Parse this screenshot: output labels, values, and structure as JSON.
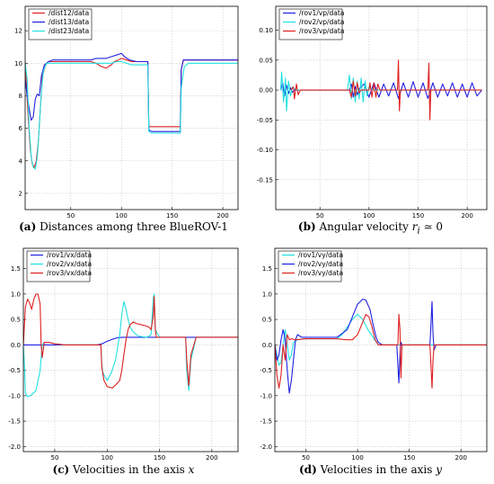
{
  "chart_data": [
    {
      "type": "line",
      "panel": "a",
      "caption": {
        "label": "(a)",
        "text": "Distances among three BlueROV-1"
      },
      "xlim": [
        5,
        215
      ],
      "ylim": [
        1,
        13.5
      ],
      "xticks": [
        50,
        100,
        150,
        200
      ],
      "yticks": [
        2,
        4,
        6,
        8,
        10,
        12
      ],
      "grid": true,
      "legend": "top-left",
      "series": [
        {
          "name": "/dist12/data",
          "color": "#e02020",
          "x": [
            5,
            8,
            10,
            12,
            14,
            16,
            18,
            20,
            22,
            25,
            28,
            32,
            40,
            60,
            70,
            75,
            80,
            85,
            90,
            93,
            97,
            100,
            105,
            110,
            120,
            126,
            127,
            130,
            140,
            150,
            158,
            159,
            161,
            165,
            180,
            200,
            215
          ],
          "y": [
            10.1,
            6.7,
            4.8,
            3.8,
            3.6,
            4.0,
            5.2,
            7.2,
            9.2,
            9.9,
            10.1,
            10.1,
            10.1,
            10.1,
            10.1,
            10.0,
            9.8,
            9.7,
            9.9,
            10.1,
            10.2,
            10.3,
            10.2,
            10.1,
            10.1,
            10.1,
            6.1,
            6.1,
            6.1,
            6.1,
            6.1,
            9.6,
            10.2,
            10.2,
            10.2,
            10.2,
            10.2
          ]
        },
        {
          "name": "/dist13/data",
          "color": "#2020e0",
          "x": [
            5,
            7,
            9,
            11,
            13,
            15,
            17,
            19,
            21,
            24,
            28,
            32,
            40,
            60,
            70,
            75,
            80,
            85,
            90,
            95,
            100,
            103,
            108,
            115,
            120,
            126,
            127,
            130,
            150,
            158,
            159,
            161,
            165,
            180,
            200,
            215
          ],
          "y": [
            9.0,
            8.0,
            7.2,
            6.5,
            6.7,
            7.8,
            8.1,
            8.0,
            9.2,
            9.9,
            10.1,
            10.2,
            10.2,
            10.2,
            10.2,
            10.3,
            10.3,
            10.3,
            10.4,
            10.5,
            10.6,
            10.4,
            10.2,
            10.1,
            10.1,
            10.1,
            5.9,
            5.8,
            5.8,
            5.8,
            9.6,
            10.2,
            10.2,
            10.2,
            10.2,
            10.2
          ]
        },
        {
          "name": "/dist23/data",
          "color": "#20e0e0",
          "x": [
            5,
            7,
            9,
            11,
            13,
            15,
            17,
            19,
            21,
            23,
            26,
            30,
            40,
            60,
            70,
            75,
            80,
            85,
            90,
            95,
            100,
            105,
            110,
            115,
            120,
            126,
            127,
            130,
            150,
            158,
            159,
            162,
            166,
            180,
            200,
            215
          ],
          "y": [
            10.0,
            9.0,
            6.0,
            4.2,
            3.6,
            3.5,
            4.2,
            6.2,
            8.2,
            9.5,
            10.0,
            10.0,
            10.0,
            10.0,
            10.0,
            10.0,
            10.0,
            10.0,
            10.0,
            10.1,
            10.1,
            10.0,
            9.9,
            9.9,
            9.9,
            9.9,
            5.8,
            5.7,
            5.7,
            5.7,
            8.5,
            9.8,
            10.0,
            10.0,
            10.0,
            10.0
          ]
        }
      ]
    },
    {
      "type": "line",
      "panel": "b",
      "caption": {
        "label": "(b)",
        "text": "Angular velocity",
        "math": "r",
        "math_sub": "i",
        "math_rest": " ≃ 0"
      },
      "xlim": [
        5,
        220
      ],
      "ylim": [
        -0.2,
        0.14
      ],
      "xticks": [
        50,
        100,
        150,
        200
      ],
      "yticks": [
        -0.15,
        -0.1,
        -0.05,
        0.0,
        0.05,
        0.1
      ],
      "grid": true,
      "legend": "top-left",
      "series": [
        {
          "name": "/rov1/vp/data",
          "color": "#2020e0",
          "x": [
            10,
            12,
            14,
            16,
            18,
            20,
            22,
            24,
            80,
            82,
            84,
            86,
            88,
            90,
            95,
            100,
            105,
            110,
            115,
            120,
            125,
            130,
            135,
            140,
            145,
            150,
            155,
            160,
            165,
            170,
            175,
            180,
            185,
            190,
            195,
            200,
            205,
            210,
            215
          ],
          "y": [
            0.0,
            0.012,
            -0.01,
            0.008,
            -0.006,
            0.004,
            -0.004,
            0.0,
            0.0,
            0.01,
            -0.012,
            0.006,
            -0.008,
            0.002,
            0.01,
            -0.012,
            0.012,
            -0.012,
            0.01,
            -0.01,
            0.012,
            -0.014,
            0.012,
            -0.012,
            0.014,
            -0.012,
            0.012,
            -0.014,
            0.012,
            -0.012,
            0.01,
            -0.01,
            0.012,
            -0.012,
            0.01,
            -0.012,
            0.012,
            -0.01,
            0.0
          ]
        },
        {
          "name": "/rov2/vp/data",
          "color": "#20e0e0",
          "x": [
            10,
            11,
            13,
            15,
            16,
            18,
            20,
            22,
            26,
            30,
            78,
            80,
            82,
            84,
            86,
            88,
            90,
            92,
            94,
            96,
            98,
            100,
            104,
            110,
            150,
            200,
            215
          ],
          "y": [
            0.0,
            0.03,
            -0.02,
            0.02,
            -0.035,
            0.015,
            -0.01,
            0.005,
            0.0,
            0.0,
            0.0,
            0.025,
            -0.015,
            0.02,
            -0.02,
            0.015,
            -0.015,
            0.02,
            -0.02,
            0.015,
            -0.01,
            0.005,
            0.0,
            0.0,
            0.0,
            0.0,
            0.0
          ]
        },
        {
          "name": "/rov3/vp/data",
          "color": "#e02020",
          "x": [
            20,
            23,
            24,
            26,
            28,
            30,
            35,
            80,
            82,
            84,
            86,
            88,
            90,
            92,
            100,
            101,
            103,
            105,
            107,
            109,
            111,
            120,
            129,
            130,
            131,
            132,
            140,
            160,
            161,
            162,
            163,
            165,
            180,
            200,
            215
          ],
          "y": [
            0.0,
            0.005,
            -0.015,
            0.01,
            -0.008,
            0.0,
            0.0,
            0.0,
            -0.012,
            0.015,
            -0.01,
            0.012,
            -0.005,
            0.0,
            0.0,
            0.012,
            -0.012,
            0.012,
            -0.012,
            0.01,
            0.0,
            0.0,
            0.0,
            0.05,
            -0.035,
            0.0,
            0.0,
            0.0,
            0.045,
            -0.05,
            0.0,
            0.0,
            0.0,
            0.0,
            0.0
          ]
        }
      ]
    },
    {
      "type": "line",
      "panel": "c",
      "caption": {
        "label": "(c)",
        "text": "Velocities in the axis",
        "math": "x",
        "math_sub": "",
        "math_rest": ""
      },
      "xlim": [
        20,
        225
      ],
      "ylim": [
        -2.1,
        1.9
      ],
      "xticks": [
        50,
        100,
        150,
        200
      ],
      "yticks": [
        -2.0,
        -1.5,
        -1.0,
        -0.5,
        0.0,
        0.5,
        1.0,
        1.5
      ],
      "grid": true,
      "legend": "top-left",
      "series": [
        {
          "name": "/rov1/vx/data",
          "color": "#2020e0",
          "x": [
            20,
            40,
            60,
            80,
            90,
            95,
            100,
            105,
            110,
            115,
            120,
            140,
            150,
            170,
            200,
            225
          ],
          "y": [
            0.0,
            0.0,
            0.0,
            0.0,
            0.0,
            0.02,
            0.07,
            0.11,
            0.14,
            0.15,
            0.15,
            0.15,
            0.15,
            0.15,
            0.15,
            0.15
          ]
        },
        {
          "name": "/rov2/vx/data",
          "color": "#20e0e0",
          "x": [
            20,
            21,
            22,
            24,
            28,
            32,
            36,
            38,
            40,
            44,
            50,
            60,
            80,
            94,
            95,
            96,
            100,
            104,
            108,
            112,
            114,
            116,
            118,
            120,
            122,
            125,
            130,
            138,
            142,
            144,
            145,
            146,
            150,
            170,
            175,
            176,
            178,
            180,
            185,
            200,
            225
          ],
          "y": [
            0.0,
            -0.4,
            -0.95,
            -1.02,
            -0.98,
            -0.9,
            -0.5,
            0.0,
            0.05,
            0.05,
            0.02,
            0.0,
            0.0,
            0.0,
            -0.4,
            -0.55,
            -0.7,
            -0.55,
            -0.3,
            0.2,
            0.6,
            0.85,
            0.7,
            0.5,
            0.35,
            0.25,
            0.17,
            0.15,
            0.2,
            0.9,
            1.0,
            0.3,
            0.15,
            0.15,
            0.15,
            -0.5,
            -0.9,
            -0.3,
            0.15,
            0.15,
            0.15
          ]
        },
        {
          "name": "/rov3/vx/data",
          "color": "#e02020",
          "x": [
            20,
            21,
            22,
            24,
            26,
            28,
            30,
            32,
            34,
            36,
            37,
            38,
            40,
            44,
            50,
            60,
            80,
            94,
            95,
            97,
            100,
            105,
            110,
            112,
            114,
            116,
            118,
            120,
            122,
            125,
            128,
            132,
            136,
            140,
            142,
            144,
            145,
            146,
            147,
            150,
            170,
            175,
            176,
            178,
            180,
            185,
            200,
            225
          ],
          "y": [
            0.0,
            0.4,
            0.75,
            0.9,
            0.82,
            0.7,
            0.9,
            1.0,
            1.0,
            0.8,
            0.0,
            -0.25,
            0.05,
            0.05,
            0.02,
            0.0,
            0.0,
            0.0,
            -0.45,
            -0.7,
            -0.82,
            -0.85,
            -0.75,
            -0.7,
            -0.5,
            -0.2,
            0.1,
            0.3,
            0.4,
            0.45,
            0.42,
            0.4,
            0.38,
            0.35,
            0.3,
            0.55,
            0.95,
            0.3,
            0.15,
            0.15,
            0.15,
            0.15,
            -0.3,
            -0.8,
            -0.2,
            0.15,
            0.15,
            0.15
          ]
        }
      ]
    },
    {
      "type": "line",
      "panel": "d",
      "caption": {
        "label": "(d)",
        "text": "Velocities in the axis",
        "math": "y",
        "math_sub": "",
        "math_rest": ""
      },
      "xlim": [
        20,
        225
      ],
      "ylim": [
        -2.1,
        1.9
      ],
      "xticks": [
        50,
        100,
        150,
        200
      ],
      "yticks": [
        -2.0,
        -1.5,
        -1.0,
        -0.5,
        0.0,
        0.5,
        1.0,
        1.5
      ],
      "grid": true,
      "legend": "top-left",
      "series": [
        {
          "name": "/rov1/vy/data",
          "color": "#20e0e0",
          "x": [
            20,
            22,
            24,
            26,
            28,
            30,
            32,
            34,
            36,
            38,
            42,
            50,
            60,
            80,
            85,
            90,
            95,
            100,
            105,
            110,
            120,
            140,
            170,
            200,
            225
          ],
          "y": [
            0.0,
            -0.2,
            -0.4,
            -0.35,
            0.0,
            0.3,
            0.0,
            -0.3,
            -0.2,
            0.05,
            0.1,
            0.12,
            0.12,
            0.12,
            0.2,
            0.35,
            0.5,
            0.6,
            0.5,
            0.3,
            0.0,
            0.0,
            0.0,
            0.0,
            0.0
          ]
        },
        {
          "name": "/rov2/vy/data",
          "color": "#2020e0",
          "x": [
            20,
            22,
            24,
            26,
            28,
            30,
            32,
            34,
            36,
            38,
            40,
            42,
            46,
            50,
            60,
            70,
            80,
            90,
            95,
            100,
            105,
            108,
            112,
            115,
            118,
            120,
            124,
            130,
            138,
            139,
            140,
            141,
            142,
            143,
            150,
            170,
            171,
            172,
            173,
            174,
            175,
            176,
            180,
            200,
            225
          ],
          "y": [
            0.0,
            -0.3,
            -0.2,
            0.1,
            0.3,
            0.1,
            -0.5,
            -0.95,
            -0.7,
            -0.3,
            0.1,
            0.2,
            0.15,
            0.15,
            0.15,
            0.15,
            0.15,
            0.3,
            0.55,
            0.8,
            0.9,
            0.88,
            0.7,
            0.4,
            0.15,
            0.05,
            0.0,
            0.0,
            0.0,
            -0.4,
            -0.75,
            -0.2,
            0.05,
            0.0,
            0.0,
            0.0,
            0.4,
            0.85,
            0.2,
            -0.1,
            -0.05,
            0.0,
            0.0,
            0.0,
            0.0
          ]
        },
        {
          "name": "/rov3/vy/data",
          "color": "#e02020",
          "x": [
            20,
            22,
            24,
            26,
            28,
            30,
            32,
            34,
            36,
            40,
            50,
            60,
            70,
            80,
            90,
            95,
            100,
            105,
            108,
            111,
            114,
            117,
            120,
            125,
            130,
            139,
            140,
            141,
            142,
            143,
            150,
            170,
            171,
            172,
            173,
            174,
            175,
            180,
            200,
            225
          ],
          "y": [
            0.0,
            -0.6,
            -0.85,
            -0.6,
            0.0,
            -0.3,
            0.2,
            0.1,
            0.12,
            0.1,
            0.12,
            0.12,
            0.12,
            0.12,
            0.1,
            0.1,
            0.2,
            0.45,
            0.6,
            0.55,
            0.35,
            0.1,
            0.0,
            0.0,
            0.0,
            0.0,
            0.6,
            0.3,
            -0.65,
            0.0,
            0.0,
            0.0,
            -0.4,
            -0.85,
            -0.3,
            0.0,
            0.0,
            0.0,
            0.0,
            0.0
          ]
        }
      ]
    }
  ]
}
